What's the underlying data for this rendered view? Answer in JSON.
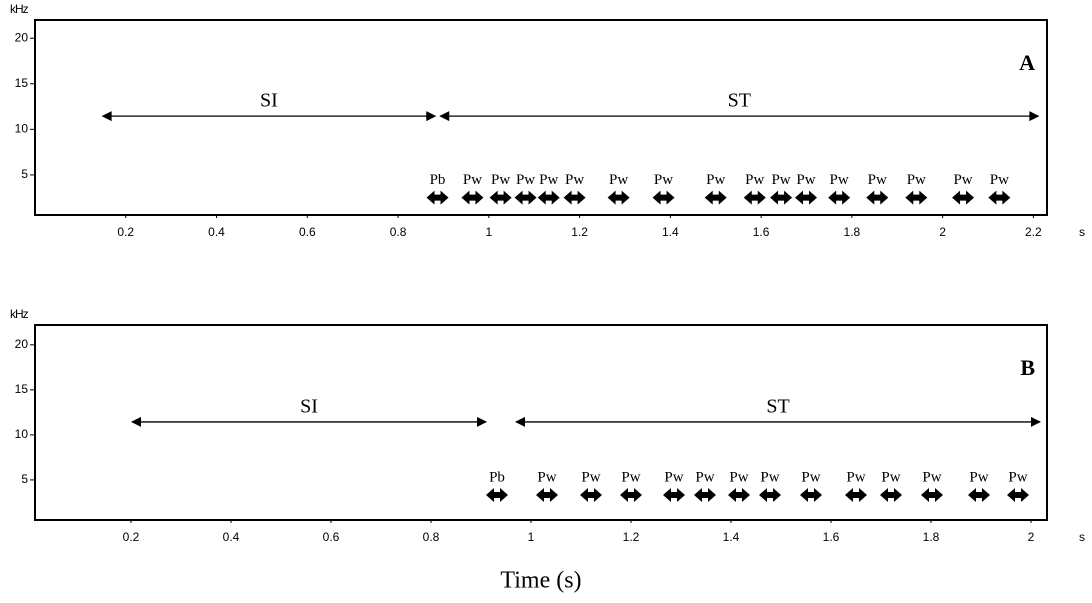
{
  "chart_data": [
    {
      "type": "spectrogram",
      "panel_label": "A",
      "y_unit": "kHz",
      "x_unit": "s",
      "xlim": [
        0,
        2.23
      ],
      "ylim": [
        0.6,
        22
      ],
      "xticks": [
        0.2,
        0.4,
        0.6,
        0.8,
        1,
        1.2,
        1.4,
        1.6,
        1.8,
        2,
        2.2
      ],
      "yticks": [
        5,
        10,
        15,
        20
      ],
      "ranges": [
        {
          "label": "SI",
          "start": 0.149,
          "end": 0.882
        },
        {
          "label": "ST",
          "start": 0.893,
          "end": 2.211
        }
      ],
      "range_y": 11.45,
      "pulses": {
        "labels": [
          "Pb",
          "Pw",
          "Pw",
          "Pw",
          "Pw",
          "Pw",
          "Pw",
          "Pw",
          "Pw",
          "Pw",
          "Pw",
          "Pw",
          "Pw",
          "Pw",
          "Pw",
          "Pw",
          "Pw"
        ],
        "x": [
          0.887,
          0.964,
          1.026,
          1.081,
          1.132,
          1.189,
          1.286,
          1.385,
          1.5,
          1.586,
          1.644,
          1.699,
          1.772,
          1.856,
          1.942,
          2.045,
          2.125
        ],
        "y": 2.5
      }
    },
    {
      "type": "spectrogram",
      "panel_label": "B",
      "y_unit": "kHz",
      "x_unit": "s",
      "xlabel": "Time (s)",
      "xlim": [
        0.008,
        2.032
      ],
      "ylim": [
        0.55,
        22.2
      ],
      "xticks": [
        0.2,
        0.4,
        0.6,
        0.8,
        1,
        1.2,
        1.4,
        1.6,
        1.8,
        2
      ],
      "yticks": [
        5,
        10,
        15,
        20
      ],
      "ranges": [
        {
          "label": "SI",
          "start": 0.202,
          "end": 0.91
        },
        {
          "label": "ST",
          "start": 0.97,
          "end": 2.018
        }
      ],
      "range_y": 11.44,
      "pulses": {
        "labels": [
          "Pb",
          "Pw",
          "Pw",
          "Pw",
          "Pw",
          "Pw",
          "Pw",
          "Pw",
          "Pw",
          "Pw",
          "Pw",
          "Pw",
          "Pw",
          "Pw"
        ],
        "x": [
          0.932,
          1.032,
          1.12,
          1.2,
          1.286,
          1.348,
          1.416,
          1.478,
          1.56,
          1.65,
          1.72,
          1.802,
          1.896,
          1.974
        ],
        "y": 3.33
      }
    }
  ]
}
